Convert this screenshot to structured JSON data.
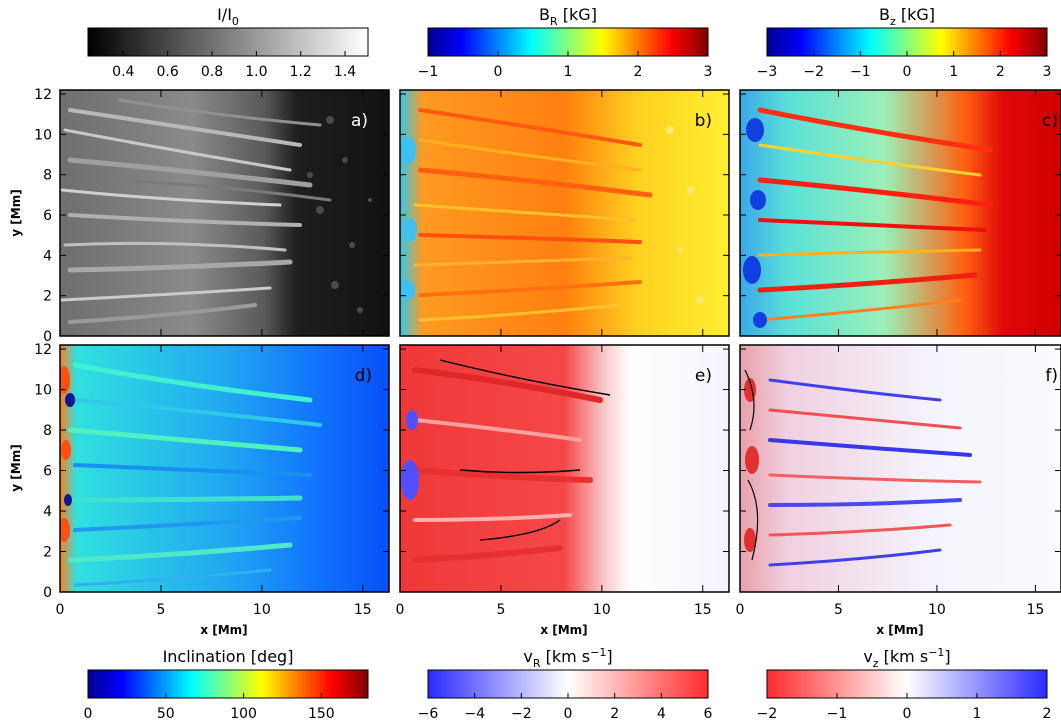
{
  "colorbars_top": [
    {
      "label_main": "I/I",
      "label_sub": "0",
      "label_unit": "",
      "ticks": [
        "0.4",
        "0.6",
        "0.8",
        "1.0",
        "1.2",
        "1.4"
      ],
      "cmap": "gray"
    },
    {
      "label_main": "B",
      "label_sub": "R",
      "label_unit": "[kG]",
      "ticks": [
        "−1",
        "0",
        "1",
        "2",
        "3"
      ],
      "cmap": "jet"
    },
    {
      "label_main": "B",
      "label_sub": "z",
      "label_unit": "[kG]",
      "ticks": [
        "−3",
        "−2",
        "−1",
        "0",
        "1",
        "2",
        "3"
      ],
      "cmap": "jet"
    }
  ],
  "colorbars_bottom": [
    {
      "label_main": "Inclination",
      "label_sub": "",
      "label_unit": "[deg]",
      "ticks": [
        "0",
        "50",
        "100",
        "150"
      ],
      "cmap": "jet"
    },
    {
      "label_main": "v",
      "label_sub": "R",
      "label_unit": "[km s",
      "label_sup": "−1",
      "ticks": [
        "−6",
        "−4",
        "−2",
        "0",
        "2",
        "4",
        "6"
      ],
      "cmap": "bwr"
    },
    {
      "label_main": "v",
      "label_sub": "z",
      "label_unit": "[km s",
      "label_sup": "−1",
      "ticks": [
        "−2",
        "−1",
        "0",
        "1",
        "2"
      ],
      "cmap": "rwb"
    }
  ],
  "panels": [
    {
      "label": "a)",
      "quantity": "intensity"
    },
    {
      "label": "b)",
      "quantity": "B_R"
    },
    {
      "label": "c)",
      "quantity": "B_z"
    },
    {
      "label": "d)",
      "quantity": "inclination"
    },
    {
      "label": "e)",
      "quantity": "v_R"
    },
    {
      "label": "f)",
      "quantity": "v_z"
    }
  ],
  "axes": {
    "xlabel": "x [Mm]",
    "ylabel": "y [Mm]",
    "x_ticks": [
      "0",
      "5",
      "10",
      "15"
    ],
    "y_ticks": [
      "0",
      "2",
      "4",
      "6",
      "8",
      "10",
      "12"
    ]
  },
  "chart_data": {
    "type": "heatmap",
    "layout": "2 rows x 3 columns of image panels sharing x and y axes",
    "xlim": [
      0,
      16.3
    ],
    "ylim": [
      0,
      12.2
    ],
    "xlabel": "x [Mm]",
    "ylabel": "y [Mm]",
    "x_ticks": [
      0,
      5,
      10,
      15
    ],
    "y_ticks": [
      0,
      2,
      4,
      6,
      8,
      10,
      12
    ],
    "colorbars": [
      {
        "panel": "a)",
        "quantity": "I/I0",
        "range": [
          0.25,
          1.5
        ],
        "ticks": [
          0.4,
          0.6,
          0.8,
          1.0,
          1.2,
          1.4
        ]
      },
      {
        "panel": "b)",
        "quantity": "B_R [kG]",
        "range": [
          -1,
          3
        ],
        "ticks": [
          -1,
          0,
          1,
          2,
          3
        ]
      },
      {
        "panel": "c)",
        "quantity": "B_z [kG]",
        "range": [
          -3,
          3
        ],
        "ticks": [
          -3,
          -2,
          -1,
          0,
          1,
          2,
          3
        ]
      },
      {
        "panel": "d)",
        "quantity": "Inclination [deg]",
        "range": [
          0,
          180
        ],
        "ticks": [
          0,
          50,
          100,
          150
        ]
      },
      {
        "panel": "e)",
        "quantity": "v_R [km s^-1]",
        "range": [
          -6,
          6
        ],
        "ticks": [
          -6,
          -4,
          -2,
          0,
          2,
          4,
          6
        ]
      },
      {
        "panel": "f)",
        "quantity": "v_z [km s^-1]",
        "range": [
          -2,
          2
        ],
        "ticks": [
          -2,
          -1,
          0,
          1,
          2
        ]
      }
    ]
  }
}
